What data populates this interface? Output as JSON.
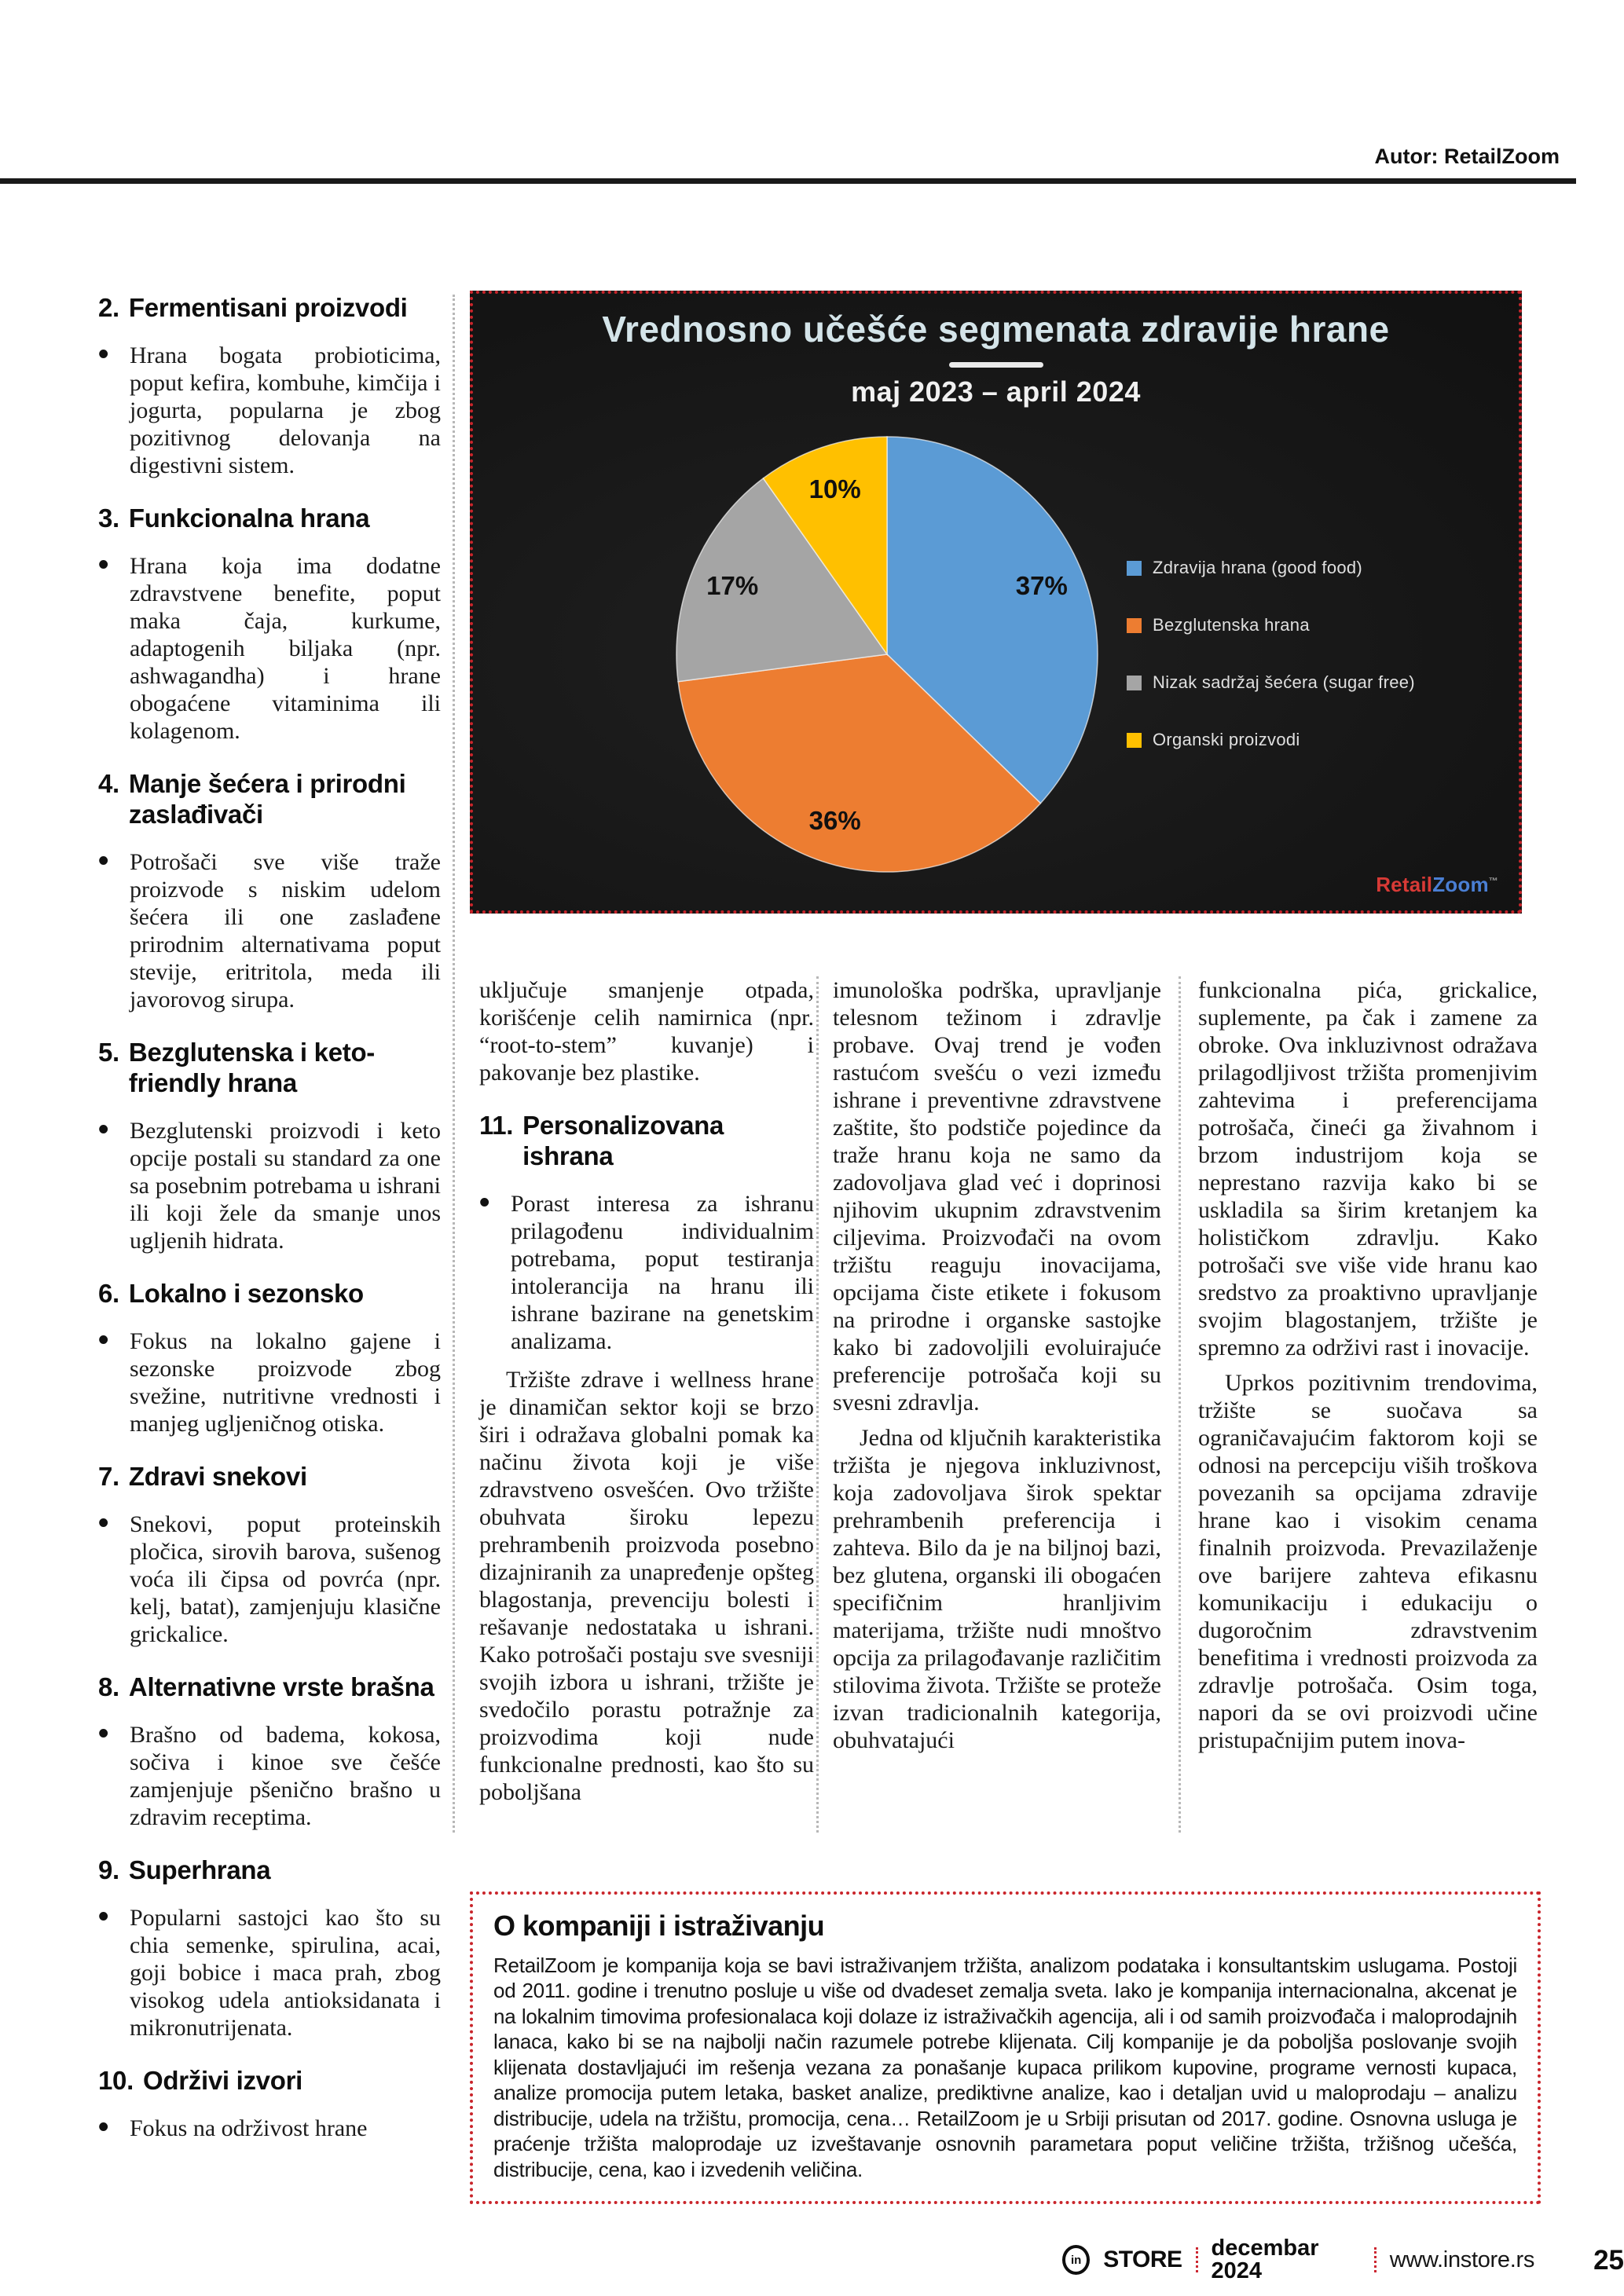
{
  "page": {
    "author_label": "Autor: RetailZoom"
  },
  "chart_data": {
    "type": "pie",
    "title": "Vrednosno učešće segmenata zdravije hrane",
    "subtitle": "maj 2023 – april 2024",
    "labels": [
      "Zdravija hrana (good food)",
      "Bezglutenska hrana",
      "Nizak sadržaj šećera (sugar free)",
      "Organski proizvodi"
    ],
    "values": [
      37,
      36,
      17,
      10
    ],
    "value_labels": [
      "37%",
      "36%",
      "17%",
      "10%"
    ],
    "colors": [
      "#5B9BD5",
      "#ED7D31",
      "#A5A5A5",
      "#FFC000"
    ],
    "legend_position": "right",
    "background": "#161616",
    "source_brand": {
      "part1": "Retail",
      "part2": "Zoom",
      "mark": "™"
    }
  },
  "columns": {
    "col1_sections": [
      {
        "num": "2.",
        "title": "Fermentisani proizvodi",
        "bullets": [
          "Hrana bogata probioticima, poput kefira, kombuhe, kimčija i jogurta, popularna je zbog pozitivnog delovanja na digestivni sistem."
        ]
      },
      {
        "num": "3.",
        "title": "Funkcionalna hrana",
        "bullets": [
          "Hrana koja ima dodatne zdravstvene benefite, poput maka čaja, kurkume, adaptogenih biljaka (npr. ashwagandha) i hrane obogaćene vitaminima ili kolagenom."
        ]
      },
      {
        "num": "4.",
        "title": "Manje šećera i prirodni zaslađivači",
        "bullets": [
          "Potrošači sve više traže proizvode s niskim udelom šećera ili one zaslađene prirodnim alternativama poput stevije, eritritola, meda ili javorovog sirupa."
        ]
      },
      {
        "num": "5.",
        "title": "Bezglutenska i keto-friendly hrana",
        "bullets": [
          "Bezglutenski proizvodi i keto opcije postali su standard za one sa posebnim potrebama u ishrani ili koji žele da smanje unos ugljenih hidrata."
        ]
      },
      {
        "num": "6.",
        "title": "Lokalno i sezonsko",
        "bullets": [
          "Fokus na lokalno gajene i sezonske proizvode zbog svežine, nutritivne vrednosti i manjeg ugljeničnog otiska."
        ]
      },
      {
        "num": "7.",
        "title": "Zdravi snekovi",
        "bullets": [
          "Snekovi, poput proteinskih pločica, sirovih barova, sušenog voća ili čipsa od povrća (npr. kelj, batat), zamjenjuju klasične grickalice."
        ]
      },
      {
        "num": "8.",
        "title": "Alternativne vrste brašna",
        "bullets": [
          "Brašno od badema, kokosa, sočiva i kinoe sve češće zamjenjuje pšenično brašno u zdravim receptima."
        ]
      },
      {
        "num": "9.",
        "title": "Superhrana",
        "bullets": [
          "Popularni sastojci kao što su chia semenke, spirulina, acai, goji bobice i maca prah, zbog visokog udela antioksidanata i mikronutrijenata."
        ]
      },
      {
        "num": "10.",
        "title": "Održivi izvori",
        "bullets": [
          "Fokus na održivost hrane"
        ]
      }
    ],
    "col2": {
      "continuation": "uključuje smanjenje otpada, korišćenje celih namirnica (npr. “root-to-stem” kuvanje) i pakovanje bez plastike.",
      "section": {
        "num": "11.",
        "title": "Personalizovana ishrana",
        "bullets": [
          "Porast interesa za ishranu prilagođenu individualnim potrebama, poput testiranja intolerancija na hranu ili ishrane bazirane na genetskim analizama."
        ]
      },
      "paragraphs": [
        "Tržište zdrave i wellness hrane je dinamičan sektor koji se brzo širi i odražava globalni pomak ka načinu života koji je više zdravstveno osvešćen. Ovo tržište obuhvata široku lepezu prehrambenih proizvoda posebno dizajniranih za unapređenje opšteg blagostanja, prevenciju bolesti i rešavanje nedostataka u ishrani. Kako potrošači postaju sve svesniji svojih izbora u ishrani, tržište je svedočilo porastu potražnje za proizvodima koji nude funkcionalne prednosti, kao što su poboljšana"
      ]
    },
    "col3": {
      "paragraphs": [
        "imunološka podrška, upravljanje telesnom težinom i zdravlje probave. Ovaj trend je vođen rastućom svešću o vezi između ishrane i preventivne zdravstvene zaštite, što podstiče pojedince da traže hranu koja ne samo da zadovoljava glad već i doprinosi njihovim ukupnim zdravstvenim ciljevima. Proizvođači na ovom tržištu reaguju inovacijama, opcijama čiste etikete i fokusom na prirodne i organske sastojke kako bi zadovoljili evoluirajuće preferencije potrošača koji su svesni zdravlja.",
        "Jedna od ključnih karakteristika tržišta je njegova inkluzivnost, koja zadovoljava širok spektar prehrambenih preferencija i zahteva. Bilo da je na biljnoj bazi, bez glutena, organski ili obogaćen specifičnim hranljivim materijama, tržište nudi mnoštvo opcija za prilagođavanje različitim stilovima života. Tržište se proteže izvan tradicionalnih kategorija, obuhvatajući"
      ]
    },
    "col4": {
      "paragraphs": [
        "funkcionalna pića, grickalice, suplemente, pa čak i zamene za obroke. Ova inkluzivnost odražava prilagodljivost tržišta promenjivim zahtevima i preferencijama potrošača, čineći ga živahnom i brzom industrijom koja se neprestano razvija kako bi se uskladila sa širim kretanjem ka holističkom zdravlju. Kako potrošači sve više vide hranu kao sredstvo za proaktivno upravljanje svojim blagostanjem, tržište je spremno za održivi rast i inovacije.",
        "Uprkos pozitivnim trendovima, tržište se suočava sa ograničavajućim faktorom koji se odnosi na percepciju viših troškova povezanih sa opcijama zdravije hrane kao i visokim cenama finalnih proizvoda. Prevazilaženje ove barijere zahteva efikasnu komunikaciju i edukaciju o dugoročnim zdravstvenim benefitima i vrednosti proizvoda za zdravlje potrošača. Osim toga, napori da se ovi proizvodi učine pristupačnijim putem inova-"
      ]
    }
  },
  "about_box": {
    "title": "O kompaniji i istraživanju",
    "body": "RetailZoom je kompanija koja se bavi istraživanjem tržišta, analizom podataka i konsultantskim uslugama. Postoji od 2011. godine i trenutno posluje u više od dvadeset zemalja sveta. Iako je kompanija internacionalna, akcenat je na lokalnim timovima profesionalaca koji dolaze iz istraživačkih agencija, ali i od samih proizvođača i maloprodajnih lanaca, kako bi se na najbolji način razumele potrebe klijenata. Cilj kompanije je da poboljša poslovanje svojih klijenata dostavljajući im rešenja vezana za ponašanje kupaca prilikom kupovine, programe vernosti kupaca, analize promocija putem letaka, basket analize, prediktivne analize, kao i detaljan uvid u maloprodaju – analizu distribucije, udela na tržištu, promocija, cena… RetailZoom je u Srbiji prisutan od 2017. godine. Osnovna usluga je praćenje tržišta maloprodaje uz izveštavanje osnovnih parametara poput veličine tržišta, tržišnog učešća, distribucije, cena, kao i izvedenih veličina."
  },
  "footer": {
    "logo_text": "in",
    "brand": "STORE",
    "issue": "decembar 2024",
    "website": "www.instore.rs",
    "page_number": "25"
  }
}
